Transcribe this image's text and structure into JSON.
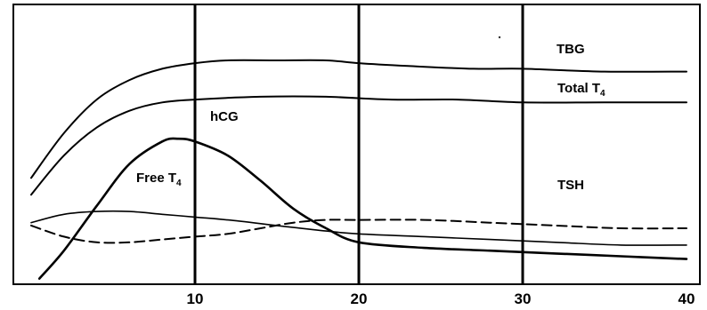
{
  "chart_data": {
    "type": "line",
    "title": "",
    "xlabel": "",
    "ylabel": "",
    "xlim": [
      0,
      40
    ],
    "ylim": [
      0,
      100
    ],
    "x_ticks": [
      10,
      20,
      30,
      40
    ],
    "x_tick_labels": [
      "10",
      "20",
      "30",
      "40"
    ],
    "vertical_gridlines_at": [
      10,
      20,
      30
    ],
    "legend": "none",
    "series": [
      {
        "name": "TBG",
        "label_text": "TBG",
        "line_style": "solid",
        "points": [
          [
            0,
            38
          ],
          [
            2,
            54
          ],
          [
            4,
            66
          ],
          [
            6,
            73
          ],
          [
            8,
            77
          ],
          [
            10,
            79
          ],
          [
            12,
            80
          ],
          [
            15,
            80
          ],
          [
            18,
            80
          ],
          [
            20,
            79
          ],
          [
            23,
            78
          ],
          [
            27,
            77
          ],
          [
            30,
            77
          ],
          [
            35,
            76
          ],
          [
            40,
            76
          ]
        ]
      },
      {
        "name": "Total T4",
        "label_text": "Total T",
        "label_subscript": "4",
        "line_style": "solid",
        "points": [
          [
            0,
            32
          ],
          [
            2,
            46
          ],
          [
            4,
            56
          ],
          [
            6,
            62
          ],
          [
            8,
            65
          ],
          [
            10,
            66
          ],
          [
            14,
            67
          ],
          [
            18,
            67
          ],
          [
            22,
            66
          ],
          [
            26,
            66
          ],
          [
            30,
            65
          ],
          [
            35,
            65
          ],
          [
            40,
            65
          ]
        ]
      },
      {
        "name": "hCG",
        "label_text": "hCG",
        "line_style": "solid",
        "points": [
          [
            0.5,
            2
          ],
          [
            2,
            12
          ],
          [
            4,
            28
          ],
          [
            6,
            43
          ],
          [
            8,
            51
          ],
          [
            9,
            52
          ],
          [
            10,
            51
          ],
          [
            12,
            46
          ],
          [
            14,
            37
          ],
          [
            16,
            27
          ],
          [
            18,
            20
          ],
          [
            20,
            15
          ],
          [
            24,
            13
          ],
          [
            28,
            12
          ],
          [
            32,
            11
          ],
          [
            36,
            10
          ],
          [
            40,
            9
          ]
        ]
      },
      {
        "name": "Free T4",
        "label_text": "Free T",
        "label_subscript": "4",
        "line_style": "solid",
        "points": [
          [
            0,
            22
          ],
          [
            2,
            25
          ],
          [
            4,
            26
          ],
          [
            6,
            26
          ],
          [
            8,
            25
          ],
          [
            10,
            24
          ],
          [
            12,
            23
          ],
          [
            15,
            21
          ],
          [
            18,
            19
          ],
          [
            20,
            18
          ],
          [
            24,
            17
          ],
          [
            28,
            16
          ],
          [
            32,
            15
          ],
          [
            36,
            14
          ],
          [
            40,
            14
          ]
        ]
      },
      {
        "name": "TSH",
        "label_text": "TSH",
        "line_style": "dashed",
        "points": [
          [
            0,
            21
          ],
          [
            2,
            17
          ],
          [
            4,
            15
          ],
          [
            6,
            15
          ],
          [
            8,
            16
          ],
          [
            10,
            17
          ],
          [
            12,
            18
          ],
          [
            14,
            20
          ],
          [
            16,
            22
          ],
          [
            18,
            23
          ],
          [
            20,
            23
          ],
          [
            24,
            23
          ],
          [
            28,
            22
          ],
          [
            32,
            21
          ],
          [
            36,
            20
          ],
          [
            40,
            20
          ]
        ]
      }
    ]
  }
}
